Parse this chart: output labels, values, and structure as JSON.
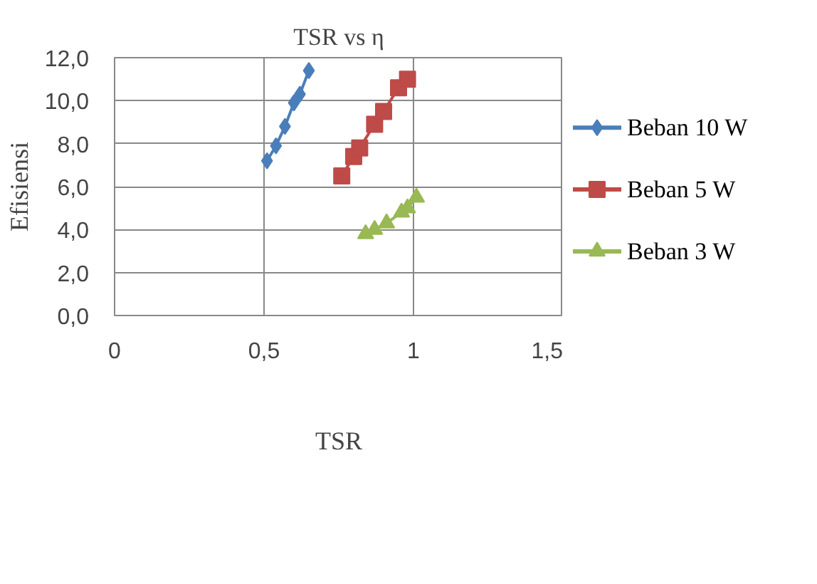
{
  "chart_data": {
    "type": "line",
    "title": "TSR vs η",
    "xlabel": "TSR",
    "ylabel": "Efisiensi",
    "xlim": [
      0,
      1.5
    ],
    "xticks": [
      {
        "value": 0,
        "label": "0"
      },
      {
        "value": 0.5,
        "label": "0,5"
      },
      {
        "value": 1,
        "label": "1"
      },
      {
        "value": 1.5,
        "label": "1,5"
      }
    ],
    "ylim": [
      0,
      12
    ],
    "yticks": [
      {
        "value": 0,
        "label": "0,0"
      },
      {
        "value": 2,
        "label": "2,0"
      },
      {
        "value": 4,
        "label": "4,0"
      },
      {
        "value": 6,
        "label": "6,0"
      },
      {
        "value": 8,
        "label": "8,0"
      },
      {
        "value": 10,
        "label": "10,0"
      },
      {
        "value": 12,
        "label": "12,0"
      }
    ],
    "grid": true,
    "legend": "right",
    "line_style": "solid",
    "series": [
      {
        "name": "Beban 10 W",
        "color": "#4a7ebb",
        "marker": "diamond",
        "x": [
          0.51,
          0.54,
          0.57,
          0.6,
          0.62,
          0.65
        ],
        "values": [
          7.2,
          7.9,
          8.8,
          9.9,
          10.3,
          11.4
        ]
      },
      {
        "name": "Beban 5 W",
        "color": "#be4b48",
        "marker": "square",
        "x": [
          0.76,
          0.8,
          0.82,
          0.87,
          0.9,
          0.95,
          0.98
        ],
        "values": [
          6.5,
          7.4,
          7.8,
          8.9,
          9.5,
          10.6,
          11.0
        ]
      },
      {
        "name": "Beban 3 W",
        "color": "#98b954",
        "marker": "triangle",
        "x": [
          0.84,
          0.87,
          0.91,
          0.96,
          0.98,
          1.01
        ],
        "values": [
          3.8,
          4.0,
          4.3,
          4.8,
          5.0,
          5.5
        ]
      }
    ]
  }
}
